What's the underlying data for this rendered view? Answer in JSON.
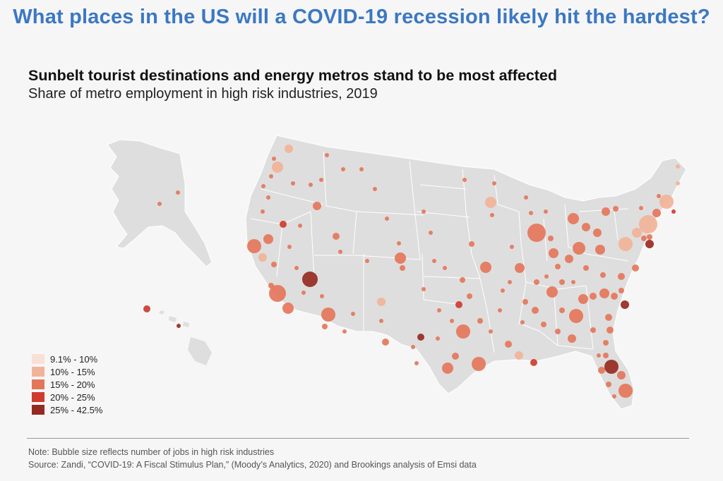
{
  "headline": "What places in the US will a COVID-19 recession likely hit the hardest?",
  "map": {
    "title": "Sunbelt tourist destinations and energy metros stand to be most affected",
    "subtitle": "Share of metro employment in high risk industries, 2019",
    "land_color": "#dedede",
    "border_color": "#ffffff"
  },
  "legend": {
    "items": [
      {
        "label": "9.1% - 10%",
        "color": "#f9e0d6"
      },
      {
        "label": "10% - 15%",
        "color": "#f1b398"
      },
      {
        "label": "15% - 20%",
        "color": "#e4765a"
      },
      {
        "label": "20% - 25%",
        "color": "#cf3b2e"
      },
      {
        "label": "25% - 42.5%",
        "color": "#962a21"
      }
    ]
  },
  "note": "Note: Bubble size reflects number of jobs in high risk industries",
  "source": "Source: Zandi, “COVID-19: A Fiscal Stimulus Plan,” (Moody’s Analytics, 2020) and Brookings analysis of Emsi data"
}
